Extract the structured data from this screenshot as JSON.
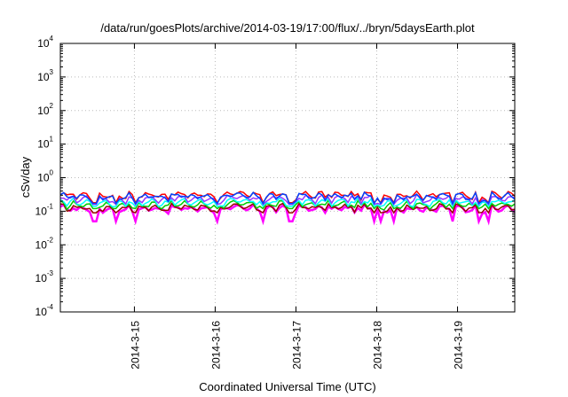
{
  "chart_data": {
    "type": "line",
    "title": "/data/run/goesPlots/archive/2014-03-19/17:00/flux/../bryn/5daysEarth.plot",
    "xlabel": "Coordinated Universal Time (UTC)",
    "ylabel": "cSv/day",
    "yscale": "log",
    "ylim": [
      0.0001,
      10000
    ],
    "xlim": [
      "2014-03-14 02:00",
      "2014-03-19 17:00"
    ],
    "grid": true,
    "x_ticks": [
      "2014-3-15",
      "2014-3-16",
      "2014-3-17",
      "2014-3-18",
      "2014-3-19"
    ],
    "y_ticks": [
      {
        "base": "10",
        "exp": "4",
        "value": 10000
      },
      {
        "base": "10",
        "exp": "3",
        "value": 1000
      },
      {
        "base": "10",
        "exp": "2",
        "value": 100
      },
      {
        "base": "10",
        "exp": "1",
        "value": 10
      },
      {
        "base": "10",
        "exp": "0",
        "value": 1
      },
      {
        "base": "10",
        "exp": "-1",
        "value": 0.1
      },
      {
        "base": "10",
        "exp": "-2",
        "value": 0.01
      },
      {
        "base": "10",
        "exp": "-3",
        "value": 0.001
      },
      {
        "base": "10",
        "exp": "-4",
        "value": 0.0001
      }
    ],
    "series": [
      {
        "color": "#ff00ff",
        "level": 0.12,
        "dips": 0.05
      },
      {
        "color": "#990000",
        "level": 0.13,
        "dips": 0.09
      },
      {
        "color": "#00cc00",
        "level": 0.16,
        "dips": 0.12
      },
      {
        "color": "#00ffff",
        "level": 0.19,
        "dips": 0.14
      },
      {
        "color": "#9933ff",
        "level": 0.24,
        "dips": 0.16
      },
      {
        "color": "#ff0000",
        "level": 0.31,
        "dips": 0.18
      },
      {
        "color": "#0044ff",
        "level": 0.28,
        "dips": 0.17
      }
    ]
  }
}
